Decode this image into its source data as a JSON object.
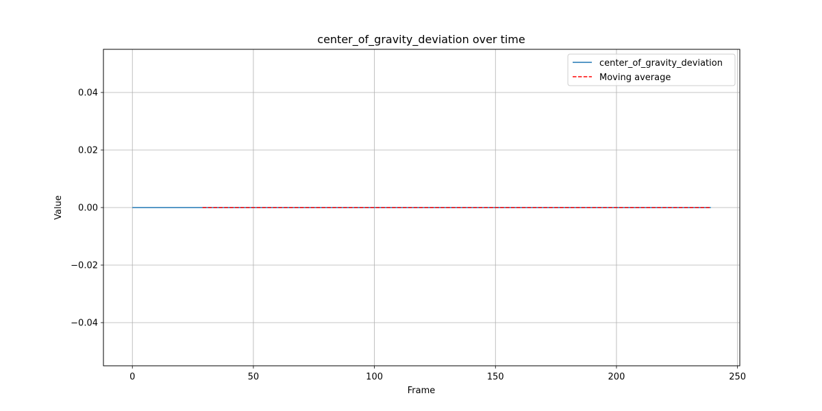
{
  "chart_data": {
    "type": "line",
    "title": "center_of_gravity_deviation over time",
    "xlabel": "Frame",
    "ylabel": "Value",
    "xlim": [
      -11.95,
      250.95
    ],
    "ylim": [
      -0.055,
      0.055
    ],
    "x_ticks": [
      0,
      50,
      100,
      150,
      200,
      250
    ],
    "y_ticks": [
      -0.04,
      -0.02,
      0.0,
      0.02,
      0.04
    ],
    "x_tick_labels": [
      "0",
      "50",
      "100",
      "150",
      "200",
      "250"
    ],
    "y_tick_labels": [
      "−0.04",
      "−0.02",
      "0.00",
      "0.02",
      "0.04"
    ],
    "grid": true,
    "legend_position": "top-right",
    "series": [
      {
        "name": "center_of_gravity_deviation",
        "color": "#1f77b4",
        "style": "solid",
        "x": [
          0,
          239
        ],
        "y": [
          0.0,
          0.0
        ]
      },
      {
        "name": "Moving average",
        "color": "#ff0000",
        "style": "dashed",
        "x": [
          29,
          239
        ],
        "y": [
          0.0,
          0.0
        ]
      }
    ]
  }
}
